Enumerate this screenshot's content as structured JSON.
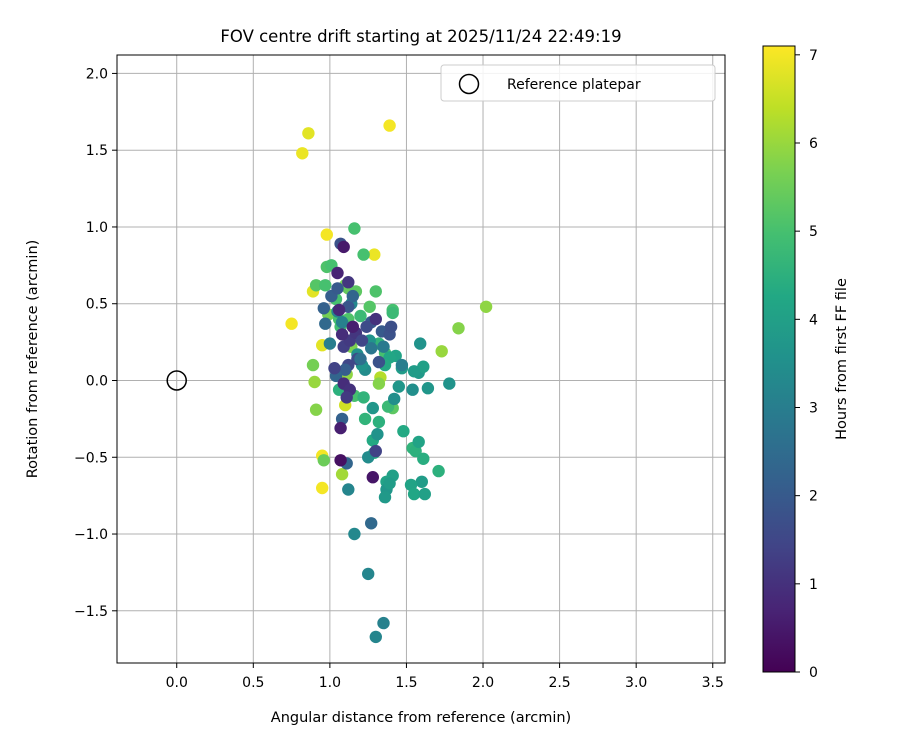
{
  "chart_data": {
    "type": "scatter",
    "title": "FOV centre drift starting at 2025/11/24 22:49:19",
    "xlabel": "Angular distance from reference (arcmin)",
    "ylabel": "Rotation from reference (arcmin)",
    "xlim": [
      -0.39,
      3.58
    ],
    "ylim": [
      -1.84,
      2.12
    ],
    "xticks": [
      "0.0",
      "0.5",
      "1.0",
      "1.5",
      "2.0",
      "2.5",
      "3.0",
      "3.5"
    ],
    "xtick_values": [
      0.0,
      0.5,
      1.0,
      1.5,
      2.0,
      2.5,
      3.0,
      3.5
    ],
    "yticks": [
      "2.0",
      "1.5",
      "1.0",
      "0.5",
      "0.0",
      "−0.5",
      "−1.0",
      "−1.5"
    ],
    "ytick_values": [
      2.0,
      1.5,
      1.0,
      0.5,
      0.0,
      -0.5,
      -1.0,
      -1.5
    ],
    "grid": true,
    "colormap": "viridis",
    "colorbar": {
      "label": "Hours from first FF file",
      "range": [
        0,
        7.1
      ],
      "ticks": [
        "0",
        "1",
        "2",
        "3",
        "4",
        "5",
        "6",
        "7"
      ],
      "tick_values": [
        0,
        1,
        2,
        3,
        4,
        5,
        6,
        7
      ]
    },
    "reference": {
      "legend_label": "Reference platepar",
      "x": 0.0,
      "y": 0.0,
      "legend_position": "top-right"
    },
    "points": [
      [
        0.82,
        1.48,
        6.9
      ],
      [
        0.86,
        1.61,
        6.8
      ],
      [
        1.39,
        1.66,
        7.0
      ],
      [
        0.75,
        0.37,
        7.0
      ],
      [
        0.89,
        0.58,
        6.8
      ],
      [
        0.95,
        0.23,
        6.8
      ],
      [
        0.98,
        0.95,
        7.0
      ],
      [
        1.29,
        0.82,
        6.9
      ],
      [
        0.95,
        -0.49,
        7.0
      ],
      [
        0.95,
        -0.7,
        7.0
      ],
      [
        1.1,
        -0.16,
        6.6
      ],
      [
        1.08,
        -0.61,
        6.1
      ],
      [
        0.9,
        -0.01,
        6.0
      ],
      [
        0.91,
        -0.19,
        5.8
      ],
      [
        0.89,
        0.1,
        5.6
      ],
      [
        0.96,
        -0.52,
        5.5
      ],
      [
        1.73,
        0.19,
        6.0
      ],
      [
        1.84,
        0.34,
        5.8
      ],
      [
        2.02,
        0.48,
        5.9
      ],
      [
        1.16,
        0.99,
        5.0
      ],
      [
        1.22,
        0.82,
        5.0
      ],
      [
        0.98,
        0.74,
        5.1
      ],
      [
        1.01,
        0.75,
        5.0
      ],
      [
        0.91,
        0.62,
        5.2
      ],
      [
        0.97,
        0.62,
        5.0
      ],
      [
        1.1,
        0.62,
        5.6
      ],
      [
        1.12,
        0.6,
        5.4
      ],
      [
        1.17,
        0.58,
        5.3
      ],
      [
        1.3,
        0.58,
        5.1
      ],
      [
        1.04,
        0.53,
        5.0
      ],
      [
        1.26,
        0.48,
        5.2
      ],
      [
        1.41,
        0.46,
        5.0
      ],
      [
        1.41,
        0.44,
        4.8
      ],
      [
        0.99,
        0.43,
        5.6
      ],
      [
        1.06,
        0.4,
        5.0
      ],
      [
        1.12,
        0.4,
        5.1
      ],
      [
        1.2,
        0.42,
        4.8
      ],
      [
        1.07,
        0.35,
        4.9
      ],
      [
        1.17,
        0.28,
        5.3
      ],
      [
        1.14,
        0.22,
        5.7
      ],
      [
        1.32,
        0.24,
        4.6
      ],
      [
        1.36,
        0.18,
        5.0
      ],
      [
        1.11,
        0.04,
        5.9
      ],
      [
        1.33,
        0.02,
        6.3
      ],
      [
        1.32,
        -0.02,
        5.8
      ],
      [
        1.16,
        -0.1,
        5.0
      ],
      [
        1.22,
        -0.11,
        4.6
      ],
      [
        1.06,
        -0.06,
        4.5
      ],
      [
        1.41,
        -0.18,
        5.3
      ],
      [
        1.38,
        -0.17,
        4.8
      ],
      [
        1.23,
        -0.25,
        4.6
      ],
      [
        1.32,
        -0.27,
        4.5
      ],
      [
        1.28,
        -0.39,
        4.3
      ],
      [
        1.29,
        -0.47,
        4.4
      ],
      [
        1.48,
        -0.33,
        4.3
      ],
      [
        1.54,
        -0.44,
        4.6
      ],
      [
        1.56,
        -0.46,
        4.5
      ],
      [
        1.58,
        -0.4,
        4.1
      ],
      [
        1.61,
        -0.51,
        4.4
      ],
      [
        1.71,
        -0.59,
        4.5
      ],
      [
        1.6,
        -0.66,
        3.9
      ],
      [
        1.53,
        -0.68,
        4.1
      ],
      [
        1.55,
        -0.74,
        4.2
      ],
      [
        1.62,
        -0.74,
        4.0
      ],
      [
        1.41,
        -0.62,
        4.0
      ],
      [
        1.37,
        -0.66,
        4.1
      ],
      [
        1.37,
        -0.71,
        3.7
      ],
      [
        1.36,
        -0.76,
        3.8
      ],
      [
        1.39,
        -0.67,
        3.9
      ],
      [
        1.45,
        -0.04,
        3.7
      ],
      [
        1.54,
        -0.06,
        3.5
      ],
      [
        1.64,
        -0.05,
        3.7
      ],
      [
        1.78,
        -0.02,
        3.6
      ],
      [
        1.58,
        0.05,
        3.8
      ],
      [
        1.61,
        0.09,
        4.0
      ],
      [
        1.55,
        0.06,
        3.9
      ],
      [
        1.59,
        0.24,
        3.6
      ],
      [
        1.43,
        0.16,
        4.1
      ],
      [
        1.39,
        0.15,
        4.2
      ],
      [
        1.47,
        0.08,
        3.9
      ],
      [
        1.36,
        0.1,
        4.3
      ],
      [
        1.25,
        -0.5,
        3.4
      ],
      [
        1.31,
        -0.35,
        3.6
      ],
      [
        1.28,
        -0.18,
        3.7
      ],
      [
        1.42,
        -0.12,
        3.5
      ],
      [
        1.23,
        0.07,
        3.4
      ],
      [
        1.21,
        0.1,
        3.6
      ],
      [
        1.26,
        0.26,
        3.6
      ],
      [
        1.18,
        0.17,
        3.5
      ],
      [
        1.14,
        0.5,
        3.3
      ],
      [
        1.05,
        0.45,
        3.2
      ],
      [
        1.08,
        0.38,
        3.1
      ],
      [
        1.0,
        0.24,
        3.0
      ],
      [
        1.12,
        -0.71,
        3.2
      ],
      [
        1.16,
        -1.0,
        3.3
      ],
      [
        1.25,
        -1.26,
        3.2
      ],
      [
        1.3,
        -1.67,
        3.2
      ],
      [
        1.35,
        -1.58,
        3.1
      ],
      [
        1.27,
        -0.93,
        2.4
      ],
      [
        1.11,
        -0.54,
        2.3
      ],
      [
        1.08,
        -0.25,
        2.2
      ],
      [
        0.97,
        0.37,
        2.4
      ],
      [
        0.96,
        0.47,
        2.2
      ],
      [
        1.01,
        0.55,
        2.1
      ],
      [
        1.05,
        0.6,
        2.0
      ],
      [
        1.12,
        0.48,
        1.9
      ],
      [
        1.15,
        0.55,
        2.3
      ],
      [
        1.27,
        0.38,
        2.0
      ],
      [
        1.34,
        0.32,
        2.0
      ],
      [
        1.39,
        0.3,
        1.8
      ],
      [
        1.4,
        0.35,
        1.7
      ],
      [
        1.32,
        0.12,
        1.8
      ],
      [
        1.18,
        0.14,
        1.6
      ],
      [
        1.12,
        0.1,
        1.5
      ],
      [
        1.1,
        0.07,
        2.1
      ],
      [
        1.04,
        0.03,
        2.3
      ],
      [
        1.03,
        0.08,
        1.4
      ],
      [
        1.09,
        0.22,
        1.3
      ],
      [
        1.13,
        0.26,
        1.2
      ],
      [
        1.17,
        0.31,
        1.1
      ],
      [
        1.21,
        0.26,
        1.5
      ],
      [
        1.24,
        0.35,
        1.6
      ],
      [
        1.3,
        0.4,
        1.0
      ],
      [
        1.08,
        0.3,
        0.9
      ],
      [
        1.07,
        0.89,
        1.8
      ],
      [
        1.09,
        0.87,
        0.5
      ],
      [
        1.05,
        0.7,
        0.7
      ],
      [
        1.12,
        0.64,
        1.1
      ],
      [
        1.06,
        0.46,
        0.8
      ],
      [
        1.15,
        0.35,
        0.6
      ],
      [
        1.09,
        -0.02,
        0.9
      ],
      [
        1.13,
        -0.06,
        1.0
      ],
      [
        1.11,
        -0.11,
        1.2
      ],
      [
        1.07,
        -0.31,
        0.6
      ],
      [
        1.07,
        -0.52,
        0.3
      ],
      [
        1.28,
        -0.63,
        0.4
      ],
      [
        1.3,
        -0.46,
        1.4
      ],
      [
        1.2,
        0.14,
        2.6
      ],
      [
        1.27,
        0.21,
        2.8
      ],
      [
        1.35,
        0.22,
        2.9
      ],
      [
        1.47,
        0.1,
        3.0
      ]
    ]
  }
}
